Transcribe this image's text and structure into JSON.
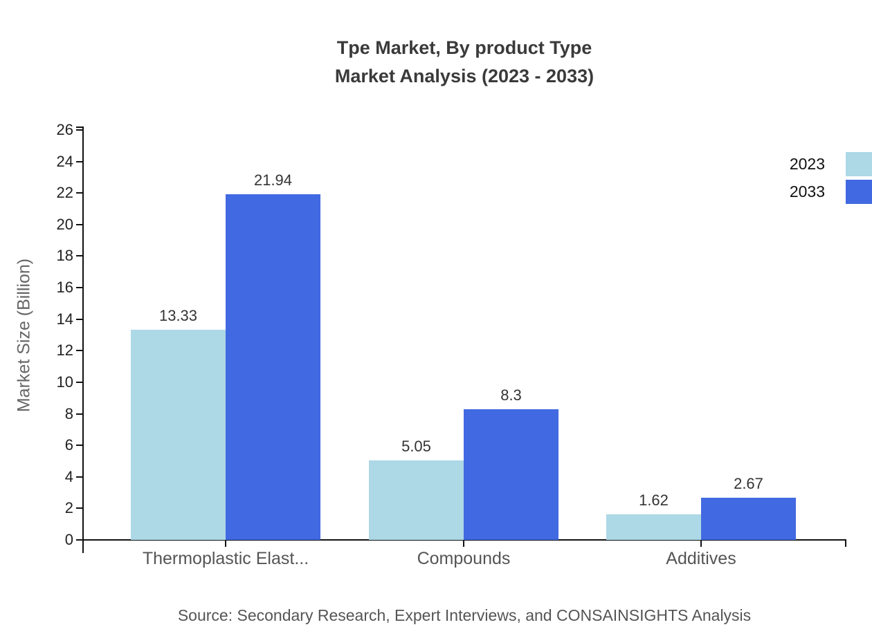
{
  "chart_data": {
    "type": "bar",
    "title_line1": "Tpe Market, By product Type",
    "title_line2": "Market Analysis (2023 - 2033)",
    "ylabel": "Market Size (Billion)",
    "categories": [
      "Thermoplastic Elast...",
      "Compounds",
      "Additives"
    ],
    "series": [
      {
        "name": "2023",
        "color": "#ADD8E6",
        "values": [
          13.33,
          5.05,
          1.62
        ],
        "labels": [
          "13.33",
          "5.05",
          "1.62"
        ]
      },
      {
        "name": "2033",
        "color": "#4169E1",
        "values": [
          21.94,
          8.3,
          2.67
        ],
        "labels": [
          "21.94",
          "8.3",
          "2.67"
        ]
      }
    ],
    "ylim": [
      0,
      26
    ],
    "ytick_step": 2,
    "grid": false,
    "legend_position": "top-right",
    "source": "Source: Secondary Research, Expert Interviews, and CONSAINSIGHTS Analysis"
  },
  "colors": {
    "axis": "#111111",
    "title": "#3a3a3a",
    "tick_label": "#222222",
    "category_label": "#555555",
    "value_label": "#333333",
    "ylabel": "#666666",
    "source": "#555555"
  }
}
